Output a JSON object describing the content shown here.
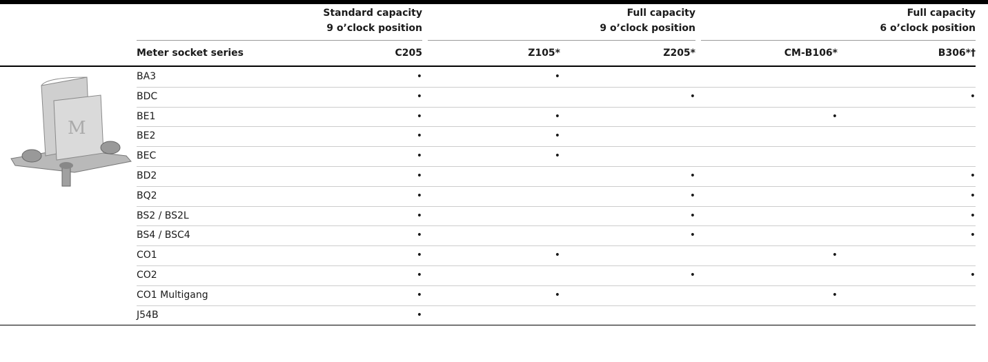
{
  "table": {
    "groups": [
      {
        "lines": [
          "Standard capacity",
          "9 o’clock position"
        ]
      },
      {
        "lines": [
          "Full capacity",
          "9 o’clock position"
        ]
      },
      {
        "lines": [
          "Full capacity",
          "6 o’clock position"
        ]
      }
    ],
    "columns": [
      "Meter socket series",
      "C205",
      "Z105*",
      "Z205*",
      "CM-B106*",
      "B306*†"
    ],
    "rows": [
      [
        "BA3",
        "•",
        "•",
        null,
        null,
        null
      ],
      [
        "BDC",
        "•",
        null,
        "•",
        null,
        "•"
      ],
      [
        "BE1",
        "•",
        "•",
        null,
        "•",
        null
      ],
      [
        "BE2",
        "•",
        "•",
        null,
        null,
        null
      ],
      [
        "BEC",
        "•",
        "•",
        null,
        null,
        null
      ],
      [
        "BD2",
        "•",
        null,
        "•",
        null,
        "•"
      ],
      [
        "BQ2",
        "•",
        null,
        "•",
        null,
        "•"
      ],
      [
        "BS2 / BS2L",
        "•",
        null,
        "•",
        null,
        "•"
      ],
      [
        "BS4 / BSC4",
        "•",
        null,
        "•",
        null,
        "•"
      ],
      [
        "CO1",
        "•",
        "•",
        null,
        "•",
        null
      ],
      [
        "CO2",
        "•",
        null,
        "•",
        null,
        "•"
      ],
      [
        "CO1 Multigang",
        "•",
        "•",
        null,
        "•",
        null
      ],
      [
        "J54B",
        "•",
        null,
        null,
        null,
        null
      ]
    ]
  }
}
